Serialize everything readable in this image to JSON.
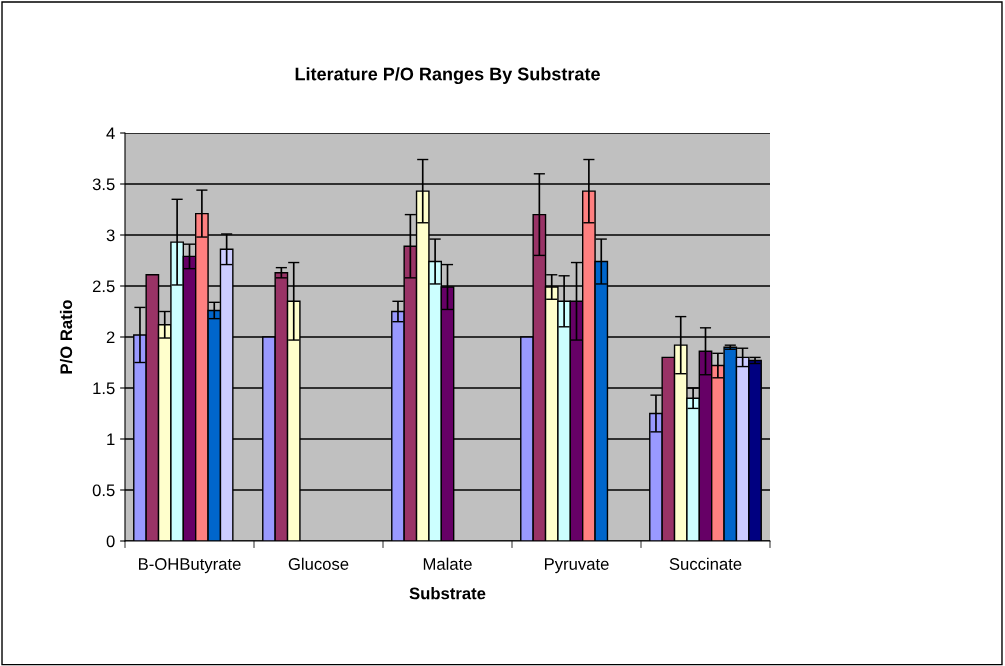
{
  "chart_data": {
    "type": "bar",
    "title": "Literature P/O Ranges By Substrate",
    "xlabel": "Substrate",
    "ylabel": "P/O Ratio",
    "categories": [
      "B-OHButyrate",
      "Glucose",
      "Malate",
      "Pyruvate",
      "Succinate"
    ],
    "ylim": [
      0,
      4
    ],
    "yticks": [
      0,
      0.5,
      1,
      1.5,
      2,
      2.5,
      3,
      3.5,
      4
    ],
    "grid": "y",
    "legend": false,
    "series": [
      {
        "color": "#9999ff",
        "values": [
          2.02,
          2.0,
          2.25,
          2.0,
          1.25
        ],
        "errors": [
          0.27,
          null,
          0.1,
          null,
          0.18
        ]
      },
      {
        "color": "#993366",
        "values": [
          2.61,
          2.63,
          2.89,
          3.2,
          1.8
        ],
        "errors": [
          null,
          0.05,
          0.31,
          0.4,
          null
        ]
      },
      {
        "color": "#ffffcc",
        "values": [
          2.12,
          2.35,
          3.43,
          2.49,
          1.92
        ],
        "errors": [
          0.13,
          0.38,
          0.31,
          0.12,
          0.28
        ]
      },
      {
        "color": "#ccffff",
        "values": [
          2.93,
          null,
          2.74,
          2.35,
          1.4
        ],
        "errors": [
          0.42,
          null,
          0.22,
          0.25,
          0.1
        ]
      },
      {
        "color": "#660066",
        "values": [
          2.79,
          null,
          2.49,
          2.35,
          1.86
        ],
        "errors": [
          0.12,
          null,
          0.22,
          0.38,
          0.23
        ]
      },
      {
        "color": "#ff8080",
        "values": [
          3.21,
          null,
          null,
          3.43,
          1.72
        ],
        "errors": [
          0.23,
          null,
          null,
          0.31,
          0.12
        ]
      },
      {
        "color": "#0066cc",
        "values": [
          2.26,
          null,
          null,
          2.74,
          1.9
        ],
        "errors": [
          0.08,
          null,
          null,
          0.22,
          0.02
        ]
      },
      {
        "color": "#ccccff",
        "values": [
          2.86,
          null,
          null,
          null,
          1.8
        ],
        "errors": [
          0.15,
          null,
          null,
          null,
          0.09
        ]
      },
      {
        "color": "#000080",
        "values": [
          null,
          null,
          null,
          null,
          1.77
        ],
        "errors": [
          null,
          null,
          null,
          null,
          0.03
        ]
      }
    ]
  }
}
